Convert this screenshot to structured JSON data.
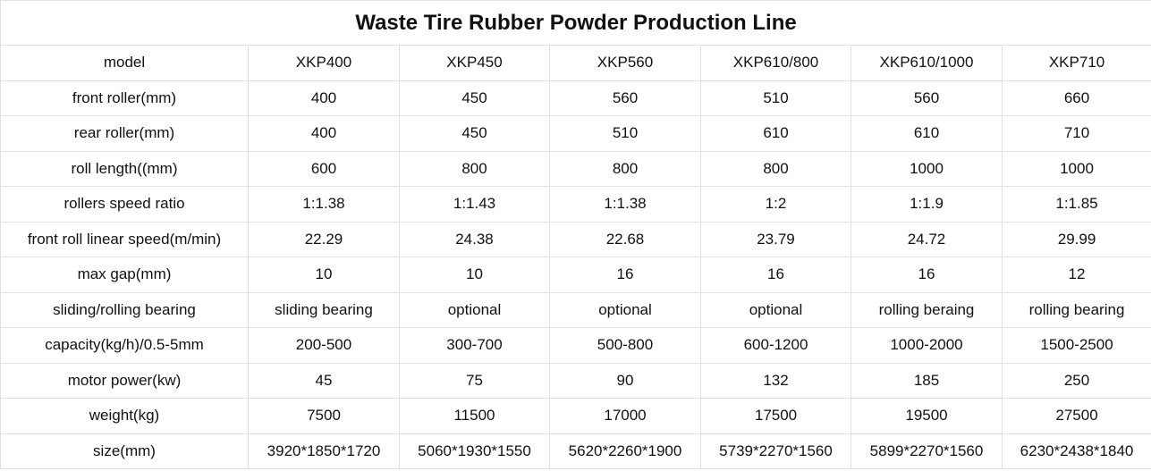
{
  "title": "Waste Tire Rubber Powder Production Line",
  "table": {
    "rows": [
      [
        "model",
        "XKP400",
        "XKP450",
        "XKP560",
        "XKP610/800",
        "XKP610/1000",
        "XKP710"
      ],
      [
        "front roller(mm)",
        "400",
        "450",
        "560",
        "510",
        "560",
        "660"
      ],
      [
        "rear roller(mm)",
        "400",
        "450",
        "510",
        "610",
        "610",
        "710"
      ],
      [
        "roll length((mm)",
        "600",
        "800",
        "800",
        "800",
        "1000",
        "1000"
      ],
      [
        "rollers speed ratio",
        "1:1.38",
        "1:1.43",
        "1:1.38",
        "1:2",
        "1:1.9",
        "1:1.85"
      ],
      [
        "front roll linear speed(m/min)",
        "22.29",
        "24.38",
        "22.68",
        "23.79",
        "24.72",
        "29.99"
      ],
      [
        "max gap(mm)",
        "10",
        "10",
        "16",
        "16",
        "16",
        "12"
      ],
      [
        "sliding/rolling bearing",
        "sliding bearing",
        "optional",
        "optional",
        "optional",
        "rolling beraing",
        "rolling bearing"
      ],
      [
        "capacity(kg/h)/0.5-5mm",
        "200-500",
        "300-700",
        "500-800",
        "600-1200",
        "1000-2000",
        "1500-2500"
      ],
      [
        "motor power(kw)",
        "45",
        "75",
        "90",
        "132",
        "185",
        "250"
      ],
      [
        "weight(kg)",
        "7500",
        "11500",
        "17000",
        "17500",
        "19500",
        "27500"
      ],
      [
        "size(mm)",
        "3920*1850*1720",
        "5060*1930*1550",
        "5620*2260*1900",
        "5739*2270*1560",
        "5899*2270*1560",
        "6230*2438*1840"
      ]
    ]
  }
}
